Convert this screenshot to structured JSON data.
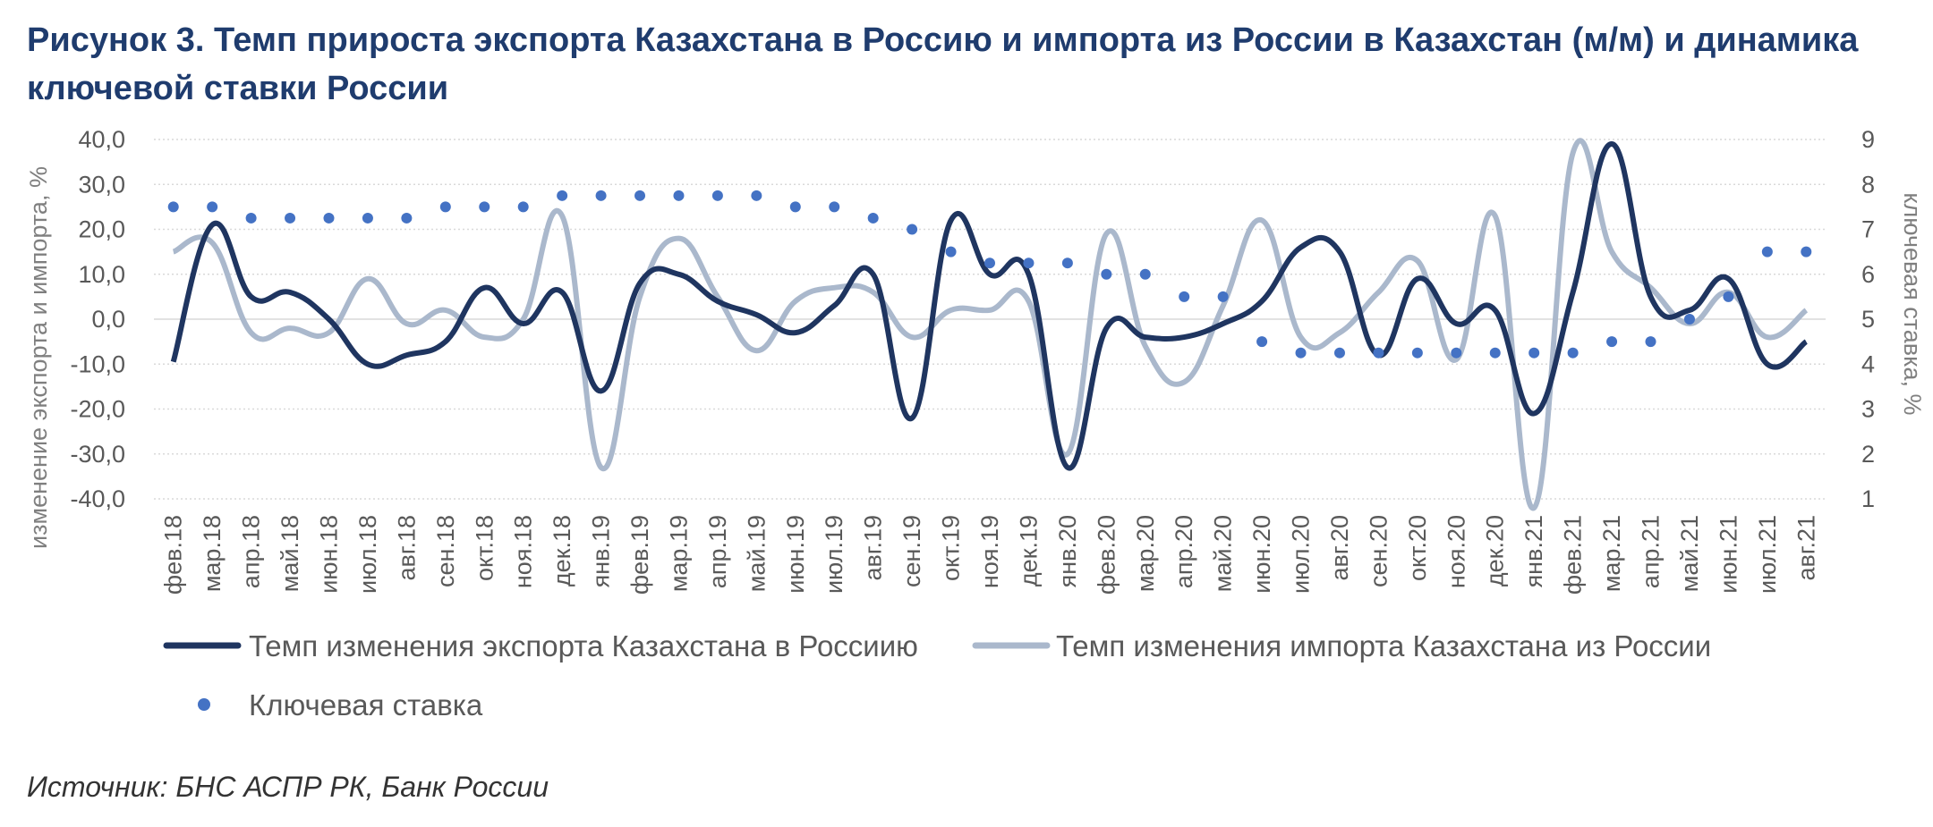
{
  "title": "Рисунок 3. Темп прироста экспорта Казахстана в Россию и импорта из России в Казахстан (м/м) и динамика ключевой ставки России",
  "source": "Источник: БНС АСПР РК, Банк России",
  "colors": {
    "export": "#1f3560",
    "import": "#aab8cc",
    "rate": "#4472c4",
    "grid": "#d9d9d9"
  },
  "chart_data": {
    "type": "line",
    "categories": [
      "фев.18",
      "мар.18",
      "апр.18",
      "май.18",
      "июн.18",
      "июл.18",
      "авг.18",
      "сен.18",
      "окт.18",
      "ноя.18",
      "дек.18",
      "янв.19",
      "фев.19",
      "мар.19",
      "апр.19",
      "май.19",
      "июн.19",
      "июл.19",
      "авг.19",
      "сен.19",
      "окт.19",
      "ноя.19",
      "дек.19",
      "янв.20",
      "фев.20",
      "мар.20",
      "апр.20",
      "май.20",
      "июн.20",
      "июл.20",
      "авг.20",
      "сен.20",
      "окт.20",
      "ноя.20",
      "дек.20",
      "янв.21",
      "фев.21",
      "мар.21",
      "апр.21",
      "май.21",
      "июн.21",
      "июл.21",
      "авг.21"
    ],
    "ylabel": "изменение экспорта и импорта, %",
    "y2label": "ключевая ставка, %",
    "ylim": [
      -40,
      40
    ],
    "y2lim": [
      1,
      9
    ],
    "yticks": [
      "40,0",
      "30,0",
      "20,0",
      "10,0",
      "0,0",
      "-10,0",
      "-20,0",
      "-30,0",
      "-40,0"
    ],
    "y2ticks": [
      "9",
      "8",
      "7",
      "6",
      "5",
      "4",
      "3",
      "2",
      "1"
    ],
    "grid": true,
    "legend_position": "bottom",
    "series": [
      {
        "name": "Темп изменения экспорта Казахстана в Россиию",
        "type": "line",
        "values": [
          -9.5,
          21,
          5,
          6,
          0,
          -10,
          -8,
          -5,
          7,
          -1,
          6,
          -16,
          8,
          10,
          4,
          1,
          -3,
          3,
          10,
          -22,
          22,
          10,
          10,
          -33,
          -2,
          -4,
          -4,
          -1,
          4,
          16,
          15,
          -8,
          9,
          -1,
          2,
          -21,
          6,
          39,
          5,
          2,
          9,
          -10,
          -5
        ]
      },
      {
        "name": "Темп изменения импорта Казахстана из России",
        "type": "line",
        "values": [
          15,
          17,
          -3,
          -2,
          -3,
          9,
          -1,
          2,
          -4,
          0,
          23,
          -33,
          5,
          18,
          5,
          -7,
          4,
          7,
          6,
          -4,
          2,
          2,
          4,
          -30,
          19,
          -6,
          -14,
          3,
          22,
          -4,
          -3,
          6,
          13,
          -9,
          23,
          -42,
          37,
          15,
          7,
          -1,
          6,
          -4,
          2
        ]
      },
      {
        "name": "Ключевая ставка",
        "type": "scatter",
        "values": [
          7.5,
          7.5,
          7.25,
          7.25,
          7.25,
          7.25,
          7.25,
          7.5,
          7.5,
          7.5,
          7.75,
          7.75,
          7.75,
          7.75,
          7.75,
          7.75,
          7.5,
          7.5,
          7.25,
          7.0,
          6.5,
          6.25,
          6.25,
          6.25,
          6.0,
          6.0,
          5.5,
          5.5,
          4.5,
          4.25,
          4.25,
          4.25,
          4.25,
          4.25,
          4.25,
          4.25,
          4.25,
          4.5,
          4.5,
          5.0,
          5.5,
          6.5,
          6.5
        ]
      }
    ]
  }
}
